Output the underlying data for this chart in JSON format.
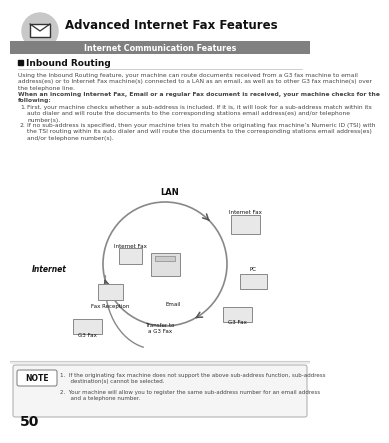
{
  "title": "Advanced Internet Fax Features",
  "subtitle": "Internet Communication Features",
  "section_title": "Inbound Routing",
  "body_text1": "Using the Inbound Routing feature, your machine can route documents received from a G3 fax machine to email\naddress(es) or to Internet Fax machine(s) connected to a LAN as an email, as well as to other G3 fax machine(s) over\nthe telephone line.",
  "body_bold": "When an incoming Internet Fax, Email or a regular Fax document is received, your machine checks for the\nfollowing:",
  "item1_num": "1.",
  "item1_text": "First, your machine checks whether a sub-address is included. If it is, it will look for a sub-address match within its\nauto dialer and will route the documents to the corresponding stations email address(es) and/or telephone\nnumber(s).",
  "item2_num": "2.",
  "item2_text": "If no sub-address is specified, then your machine tries to match the originating fax machine’s Numeric ID (TSI) with\nthe TSI routing within its auto dialer and will route the documents to the corresponding stations email address(es)\nand/or telephone number(s).",
  "diagram_lan": "LAN",
  "diagram_internet": "Internet",
  "diagram_internet_fax_left": "Internet Fax",
  "diagram_fax_reception": "Fax Reception",
  "diagram_g3_fax_bl": "G3 Fax",
  "diagram_email": "Email",
  "diagram_transfer": "Transfer to\na G3 Fax",
  "diagram_internet_fax_right": "Internet Fax",
  "diagram_pc": "PC",
  "diagram_g3_fax_br": "G3 Fax",
  "note_label": "NOTE",
  "note1": "1.  If the originating fax machine does not support the above sub-address function, sub-address\n      destination(s) cannot be selected.",
  "note2": "2.  Your machine will allow you to register the same sub-address number for an email address\n      and a telephone number.",
  "page_number": "50",
  "bg_color": "#ffffff",
  "subtitle_bg": "#808080",
  "subtitle_color": "#ffffff",
  "title_color": "#111111",
  "text_color": "#444444",
  "header_circle_color": "#c8c8c8",
  "diagram_circle_color": "#888888",
  "arrow_color": "#555555"
}
